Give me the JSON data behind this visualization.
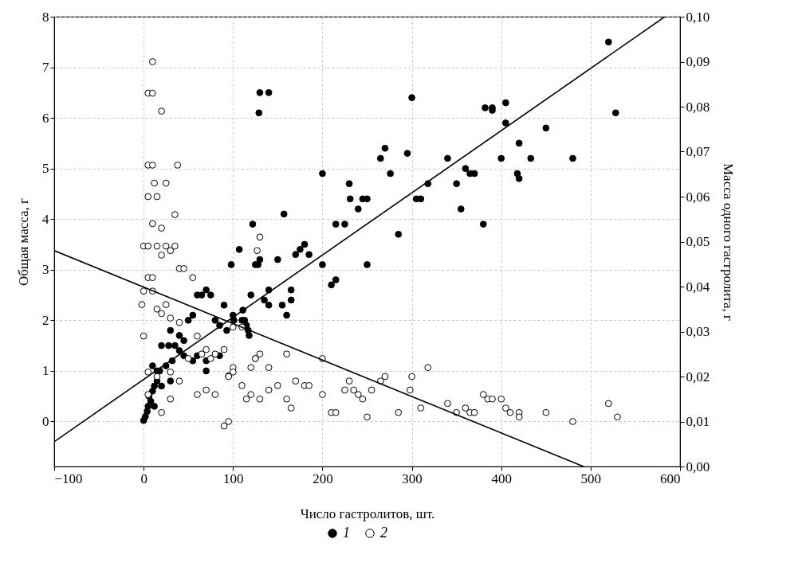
{
  "chart_data": {
    "type": "scatter",
    "xlabel": "Число гастролитов, шт.",
    "ylabel": "Общая масса, г",
    "y2label": "Масса одного гастролита, г",
    "xlim": [
      -100,
      600
    ],
    "xticks": [
      -100,
      0,
      100,
      200,
      300,
      400,
      500,
      600
    ],
    "ylim": [
      -0.89,
      8
    ],
    "yticks": [
      0,
      1,
      2,
      3,
      4,
      5,
      6,
      7,
      8
    ],
    "y2lim": [
      0,
      0.1
    ],
    "y2ticks": [
      {
        "value": 0,
        "label": "0,00"
      },
      {
        "value": 0.01,
        "label": "0,01"
      },
      {
        "value": 0.02,
        "label": "0,02"
      },
      {
        "value": 0.03,
        "label": "0,03"
      },
      {
        "value": 0.04,
        "label": "0,04"
      },
      {
        "value": 0.05,
        "label": "0,05"
      },
      {
        "value": 0.06,
        "label": "0,06"
      },
      {
        "value": 0.07,
        "label": "0,07"
      },
      {
        "value": 0.08,
        "label": "0,08"
      },
      {
        "value": 0.09,
        "label": "0,09"
      },
      {
        "value": 0.1,
        "label": "0,10"
      }
    ],
    "grid": true,
    "legend": "bottom",
    "series": [
      {
        "name": "1",
        "color": "#000000",
        "axis": "y",
        "marker": "circle",
        "x": [
          520,
          528,
          129,
          130,
          140,
          300,
          382,
          390,
          390,
          405,
          405,
          450,
          420,
          480,
          433,
          400,
          365,
          360,
          370,
          418,
          420,
          380,
          340,
          350,
          355,
          270,
          265,
          295,
          276,
          200,
          230,
          245,
          250,
          240,
          231,
          225,
          215,
          310,
          305,
          318,
          285,
          210,
          215,
          250,
          200,
          157,
          175,
          180,
          170,
          185,
          150,
          122,
          107,
          98,
          128,
          125,
          130,
          140,
          135,
          165,
          160,
          155,
          140,
          165,
          120,
          111,
          113,
          115,
          117,
          118,
          110,
          101,
          100,
          93,
          90,
          85,
          80,
          75,
          70,
          65,
          60,
          55,
          50,
          45,
          40,
          35,
          30,
          28,
          25,
          20,
          18,
          15,
          20,
          30,
          32,
          40,
          45,
          55,
          60,
          70,
          85,
          95,
          70,
          0,
          2,
          4,
          5,
          8,
          10,
          12,
          6,
          15,
          10,
          12
        ],
        "values": [
          7.5,
          6.1,
          6.1,
          6.5,
          6.5,
          6.4,
          6.2,
          6.15,
          6.2,
          6.3,
          5.9,
          5.8,
          5.5,
          5.2,
          5.2,
          5.2,
          4.9,
          5.0,
          4.9,
          4.9,
          4.8,
          3.9,
          5.2,
          4.7,
          4.2,
          5.4,
          5.2,
          5.3,
          4.9,
          4.9,
          4.7,
          4.4,
          4.4,
          4.2,
          4.4,
          3.9,
          3.9,
          4.4,
          4.4,
          4.7,
          3.7,
          2.7,
          2.8,
          3.1,
          3.1,
          4.1,
          3.4,
          3.5,
          3.3,
          3.3,
          3.2,
          3.9,
          3.4,
          3.1,
          3.1,
          3.1,
          3.2,
          2.6,
          2.4,
          2.6,
          2.1,
          2.3,
          2.3,
          2.4,
          2.5,
          2.2,
          2.0,
          1.9,
          1.8,
          1.7,
          2.0,
          2.0,
          2.1,
          1.8,
          2.3,
          1.9,
          2.0,
          2.5,
          2.6,
          2.5,
          2.5,
          2.1,
          2.0,
          1.6,
          1.7,
          1.5,
          1.8,
          1.5,
          1.1,
          1.5,
          1.0,
          0.8,
          0.7,
          0.8,
          1.2,
          1.4,
          1.3,
          1.2,
          1.3,
          1.2,
          1.3,
          0.9,
          1.0,
          0.02,
          0.1,
          0.2,
          0.3,
          0.4,
          0.6,
          0.7,
          0.5,
          1.0,
          1.1,
          0.3
        ]
      },
      {
        "name": "2",
        "color": "#000000",
        "axis": "y2",
        "marker": "circle",
        "x": [
          10,
          5,
          10,
          20,
          5,
          10,
          38,
          12,
          25,
          5,
          15,
          35,
          10,
          20,
          0,
          5,
          15,
          25,
          35,
          20,
          30,
          40,
          45,
          55,
          5,
          10,
          0,
          10,
          15,
          20,
          25,
          30,
          -2,
          0,
          40,
          60,
          70,
          75,
          50,
          65,
          80,
          90,
          100,
          100,
          120,
          125,
          130,
          140,
          160,
          200,
          125,
          130,
          127,
          110,
          100,
          95,
          90,
          95,
          110,
          115,
          120,
          130,
          140,
          150,
          160,
          165,
          170,
          180,
          185,
          200,
          210,
          215,
          225,
          230,
          235,
          240,
          245,
          250,
          255,
          265,
          270,
          285,
          298,
          300,
          310,
          318,
          340,
          350,
          360,
          365,
          370,
          380,
          385,
          390,
          400,
          405,
          410,
          420,
          420,
          450,
          480,
          520,
          530,
          40,
          60,
          70,
          80,
          30,
          20,
          15,
          5,
          5,
          30
        ],
        "values": [
          0.09,
          0.083,
          0.083,
          0.079,
          0.067,
          0.067,
          0.067,
          0.063,
          0.063,
          0.06,
          0.06,
          0.056,
          0.054,
          0.053,
          0.049,
          0.049,
          0.049,
          0.049,
          0.049,
          0.047,
          0.048,
          0.044,
          0.044,
          0.042,
          0.042,
          0.042,
          0.039,
          0.039,
          0.035,
          0.034,
          0.036,
          0.033,
          0.036,
          0.029,
          0.032,
          0.029,
          0.026,
          0.024,
          0.024,
          0.025,
          0.025,
          0.026,
          0.022,
          0.021,
          0.022,
          0.024,
          0.025,
          0.022,
          0.025,
          0.024,
          0.024,
          0.051,
          0.048,
          0.031,
          0.031,
          0.02,
          0.009,
          0.01,
          0.018,
          0.015,
          0.016,
          0.015,
          0.017,
          0.018,
          0.015,
          0.013,
          0.019,
          0.018,
          0.018,
          0.016,
          0.012,
          0.012,
          0.017,
          0.019,
          0.017,
          0.016,
          0.015,
          0.011,
          0.017,
          0.019,
          0.02,
          0.012,
          0.017,
          0.02,
          0.013,
          0.022,
          0.014,
          0.012,
          0.013,
          0.012,
          0.012,
          0.016,
          0.015,
          0.015,
          0.015,
          0.013,
          0.012,
          0.012,
          0.011,
          0.012,
          0.01,
          0.014,
          0.011,
          0.019,
          0.016,
          0.017,
          0.016,
          0.015,
          0.012,
          0.02,
          0.016,
          0.021,
          0.021
        ]
      },
      {
        "type": "line",
        "color": "#000000",
        "axis": "y",
        "x": [
          -100,
          583
        ],
        "values": [
          -0.4,
          8
        ]
      },
      {
        "type": "line",
        "color": "#000000",
        "axis": "y2",
        "x": [
          -100,
          492
        ],
        "values": [
          0.048,
          0
        ]
      }
    ]
  }
}
